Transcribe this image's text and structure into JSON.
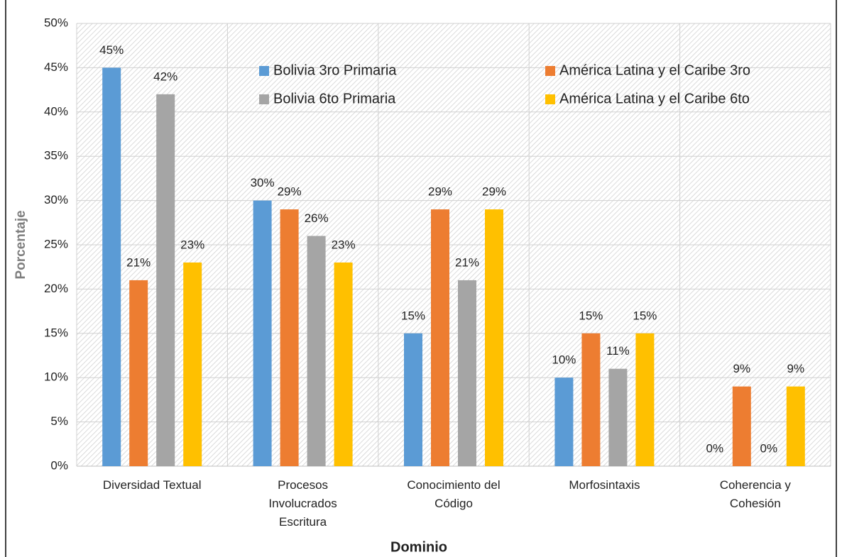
{
  "chart_data": {
    "type": "bar",
    "categories": [
      "Diversidad Textual",
      "Procesos\nInvolucrados\nEscritura",
      "Conocimiento del\nCódigo",
      "Morfosintaxis",
      "Coherencia y\nCohesión"
    ],
    "series": [
      {
        "name": "Bolivia 3ro Primaria",
        "color": "#5b9bd5",
        "values": [
          45,
          30,
          15,
          10,
          0
        ],
        "value_labels": [
          "45%",
          "30%",
          "15%",
          "10%",
          "0%"
        ]
      },
      {
        "name": "América Latina y el Caribe 3ro",
        "color": "#ed7d31",
        "values": [
          21,
          29,
          29,
          15,
          9
        ],
        "value_labels": [
          "21%",
          "29%",
          "29%",
          "15%",
          "9%"
        ]
      },
      {
        "name": "Bolivia 6to Primaria",
        "color": "#a5a5a5",
        "values": [
          42,
          26,
          21,
          11,
          0
        ],
        "value_labels": [
          "42%",
          "26%",
          "21%",
          "11%",
          "0%"
        ]
      },
      {
        "name": "América Latina y el Caribe 6to",
        "color": "#ffc000",
        "values": [
          23,
          23,
          29,
          15,
          9
        ],
        "value_labels": [
          "23%",
          "23%",
          "29%",
          "15%",
          "9%"
        ]
      }
    ],
    "ylabel": "Porcentaje",
    "xlabel": "Dominio",
    "ylim": [
      0,
      50
    ],
    "yticks": [
      {
        "value": 0,
        "label": "0%"
      },
      {
        "value": 5,
        "label": "5%"
      },
      {
        "value": 10,
        "label": "10%"
      },
      {
        "value": 15,
        "label": "15%"
      },
      {
        "value": 20,
        "label": "20%"
      },
      {
        "value": 25,
        "label": "25%"
      },
      {
        "value": 30,
        "label": "30%"
      },
      {
        "value": 35,
        "label": "35%"
      },
      {
        "value": 40,
        "label": "40%"
      },
      {
        "value": 45,
        "label": "45%"
      },
      {
        "value": 50,
        "label": "50%"
      }
    ],
    "grid": true,
    "legend": "top"
  }
}
